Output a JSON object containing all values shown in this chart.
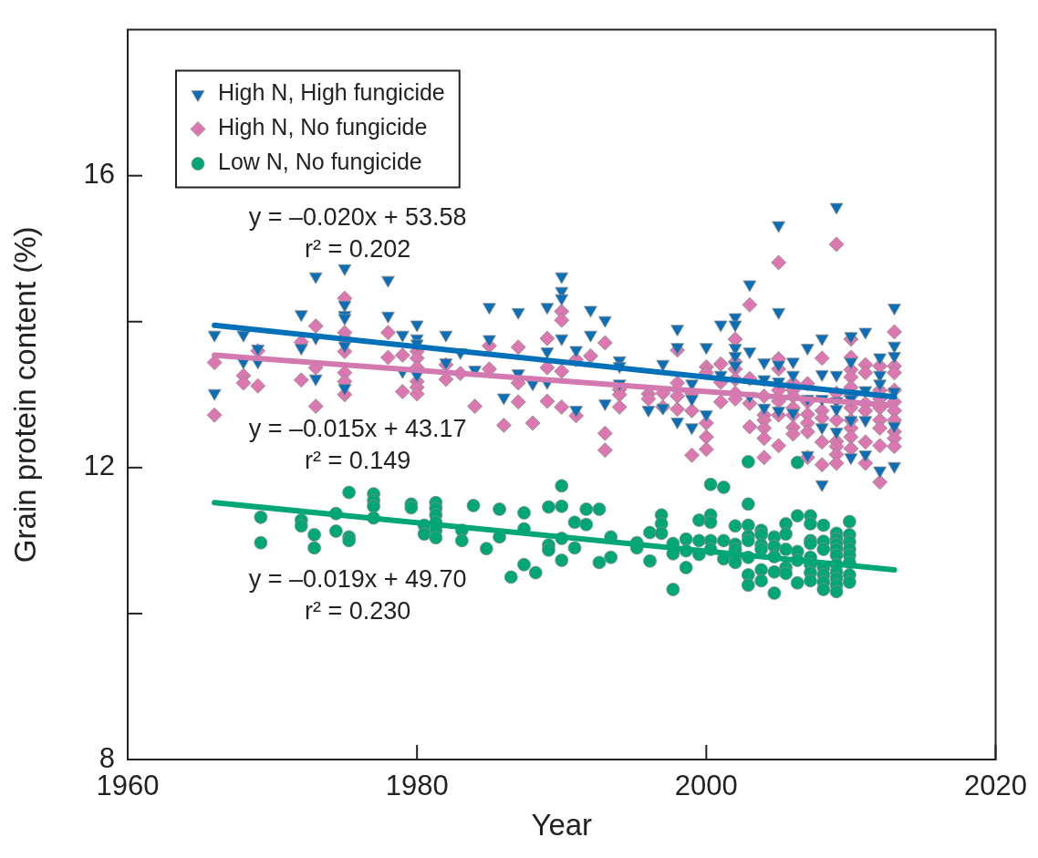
{
  "chart_data": {
    "type": "scatter",
    "xlabel": "Year",
    "ylabel": "Grain protein content (%)",
    "xlim": [
      1960,
      2020
    ],
    "xticks": [
      1960,
      1980,
      2000,
      2020
    ],
    "ylim": [
      8,
      18
    ],
    "yticks": [
      8,
      {
        "value": 10,
        "label": null
      },
      12,
      {
        "value": 14,
        "label": null
      },
      16
    ],
    "legend": "top left",
    "series": [
      {
        "name": "High N, High fungicide",
        "color": "#0b6fb8",
        "marker": "triangle",
        "x": [
          1966,
          1966,
          1968,
          1968,
          1969,
          1969,
          1972,
          1972,
          1973,
          1973,
          1973,
          1975,
          1975,
          1975,
          1975,
          1975,
          1975,
          1978,
          1978,
          1979,
          1979,
          1980,
          1980,
          1980,
          1980,
          1982,
          1982,
          1983,
          1984,
          1985,
          1985,
          1986,
          1987,
          1987,
          1988,
          1989,
          1989,
          1989,
          1990,
          1990,
          1990,
          1990,
          1991,
          1991,
          1992,
          1992,
          1993,
          1993,
          1994,
          1994,
          1994,
          1996,
          1997,
          1997,
          1998,
          1998,
          1998,
          1999,
          1999,
          1999,
          2000,
          2000,
          2001,
          2001,
          2002,
          2002,
          2002,
          2002,
          2002,
          2003,
          2003,
          2003,
          2004,
          2004,
          2004,
          2005,
          2005,
          2005,
          2005,
          2005,
          2006,
          2006,
          2006,
          2007,
          2007,
          2007,
          2008,
          2008,
          2008,
          2008,
          2008,
          2009,
          2009,
          2009,
          2009,
          2009,
          2010,
          2010,
          2010,
          2010,
          2010,
          2011,
          2011,
          2011,
          2011,
          2012,
          2012,
          2012,
          2012,
          2013,
          2013,
          2013,
          2013,
          2013,
          2013
        ],
        "values": [
          13.82,
          13.02,
          13.82,
          13.45,
          13.63,
          13.45,
          14.1,
          13.64,
          14.62,
          13.78,
          13.22,
          14.73,
          14.23,
          14.09,
          14.05,
          13.67,
          13.09,
          14.57,
          14.08,
          13.82,
          13.32,
          13.96,
          13.77,
          13.7,
          13.27,
          13.82,
          13.44,
          13.58,
          13.34,
          14.2,
          13.76,
          12.96,
          14.13,
          13.29,
          13.15,
          14.2,
          13.59,
          13.17,
          14.62,
          14.42,
          14.32,
          13.77,
          13.61,
          12.79,
          14.16,
          13.82,
          14.02,
          12.88,
          13.47,
          13.39,
          13.15,
          12.79,
          13.42,
          12.82,
          13.9,
          13.65,
          12.63,
          13.15,
          12.94,
          12.55,
          13.65,
          12.73,
          13.96,
          13.27,
          14.06,
          13.96,
          13.64,
          13.53,
          13.4,
          14.51,
          13.59,
          12.98,
          13.44,
          13.21,
          12.82,
          15.32,
          14.13,
          13.41,
          13.18,
          12.78,
          13.45,
          13.27,
          12.75,
          13.64,
          12.94,
          12.17,
          13.77,
          13.28,
          12.94,
          12.55,
          11.77,
          15.57,
          13.27,
          12.91,
          12.8,
          12.49,
          13.8,
          13.45,
          12.94,
          12.65,
          12.14,
          13.86,
          13.06,
          12.65,
          12.18,
          13.51,
          13.27,
          13.15,
          11.96,
          14.19,
          13.67,
          13.53,
          13.04,
          12.57,
          12.02
        ]
      },
      {
        "name": "High N, No fungicide",
        "color": "#dd77b2",
        "marker": "diamond",
        "x": [
          1966,
          1966,
          1968,
          1968,
          1969,
          1969,
          1972,
          1972,
          1973,
          1973,
          1973,
          1975,
          1975,
          1975,
          1975,
          1975,
          1975,
          1975,
          1978,
          1978,
          1979,
          1979,
          1980,
          1980,
          1980,
          1980,
          1980,
          1980,
          1982,
          1982,
          1983,
          1984,
          1985,
          1985,
          1986,
          1987,
          1987,
          1987,
          1988,
          1989,
          1989,
          1989,
          1990,
          1990,
          1990,
          1990,
          1991,
          1991,
          1992,
          1993,
          1993,
          1993,
          1994,
          1994,
          1994,
          1996,
          1996,
          1997,
          1997,
          1998,
          1998,
          1998,
          1998,
          1999,
          1999,
          1999,
          2000,
          2000,
          2000,
          2000,
          2000,
          2001,
          2001,
          2001,
          2002,
          2002,
          2002,
          2002,
          2002,
          2002,
          2003,
          2003,
          2003,
          2003,
          2004,
          2004,
          2004,
          2004,
          2004,
          2004,
          2005,
          2005,
          2005,
          2005,
          2005,
          2005,
          2005,
          2006,
          2006,
          2006,
          2006,
          2006,
          2006,
          2006,
          2007,
          2007,
          2007,
          2007,
          2007,
          2007,
          2008,
          2008,
          2008,
          2008,
          2008,
          2009,
          2009,
          2009,
          2009,
          2009,
          2009,
          2009,
          2010,
          2010,
          2010,
          2010,
          2010,
          2010,
          2010,
          2010,
          2010,
          2010,
          2010,
          2011,
          2011,
          2011,
          2011,
          2011,
          2011,
          2012,
          2012,
          2012,
          2012,
          2012,
          2012,
          2012,
          2012,
          2013,
          2013,
          2013,
          2013,
          2013,
          2013,
          2013,
          2013,
          2013,
          2013
        ],
        "values": [
          13.44,
          12.72,
          13.26,
          13.16,
          13.6,
          13.12,
          13.72,
          13.2,
          13.94,
          13.37,
          12.84,
          14.32,
          13.85,
          13.77,
          13.59,
          13.3,
          13.18,
          13.0,
          13.85,
          13.51,
          13.54,
          13.04,
          13.59,
          13.5,
          13.37,
          13.18,
          13.1,
          13.01,
          13.41,
          13.21,
          13.29,
          12.84,
          13.67,
          13.35,
          12.58,
          13.65,
          13.16,
          12.9,
          12.61,
          13.77,
          13.37,
          12.91,
          14.14,
          14.02,
          13.32,
          12.83,
          13.48,
          12.71,
          13.53,
          13.71,
          12.47,
          12.24,
          13.07,
          13.0,
          12.83,
          13.01,
          12.94,
          13.02,
          12.83,
          13.61,
          13.16,
          12.98,
          12.8,
          13.02,
          12.78,
          12.17,
          13.38,
          13.3,
          12.61,
          12.42,
          12.25,
          13.42,
          13.17,
          12.9,
          13.76,
          13.45,
          13.35,
          13.21,
          13.02,
          12.94,
          14.23,
          13.22,
          12.88,
          12.56,
          12.98,
          12.72,
          12.65,
          12.54,
          12.4,
          12.14,
          14.81,
          13.49,
          13.35,
          13.06,
          12.91,
          12.72,
          12.3,
          13.16,
          13.06,
          12.98,
          12.82,
          12.72,
          12.55,
          12.46,
          13.15,
          12.9,
          12.73,
          12.61,
          12.49,
          12.14,
          13.5,
          12.78,
          12.68,
          12.35,
          12.04,
          15.06,
          13.02,
          12.65,
          12.36,
          12.29,
          12.18,
          12.06,
          13.76,
          13.51,
          13.34,
          13.24,
          13.1,
          12.98,
          12.82,
          12.65,
          12.54,
          12.42,
          12.26,
          13.41,
          13.3,
          12.88,
          12.78,
          12.35,
          12.06,
          13.39,
          13.06,
          12.94,
          12.82,
          12.65,
          12.54,
          12.3,
          11.8,
          13.86,
          13.39,
          13.3,
          13.06,
          12.9,
          12.78,
          12.65,
          12.49,
          12.4,
          12.29
        ]
      },
      {
        "name": "Low N, No fungicide",
        "color": "#00a676",
        "marker": "circle",
        "x": [
          1969.2,
          1969.2,
          1972.0,
          1972.0,
          1972.9,
          1972.9,
          1974.4,
          1974.4,
          1975.3,
          1975.3,
          1975.3,
          1977.0,
          1977.0,
          1977.0,
          1977.0,
          1979.6,
          1979.6,
          1980.5,
          1980.5,
          1981.3,
          1981.3,
          1981.3,
          1981.3,
          1981.3,
          1981.3,
          1983.1,
          1983.1,
          1983.9,
          1984.8,
          1985.7,
          1985.7,
          1986.5,
          1987.4,
          1987.4,
          1987.4,
          1988.2,
          1989.1,
          1989.1,
          1989.1,
          1990.0,
          1990.0,
          1990.0,
          1990.0,
          1990.9,
          1990.9,
          1991.7,
          1991.7,
          1992.6,
          1992.6,
          1993.4,
          1993.4,
          1995.2,
          1995.2,
          1996.1,
          1996.1,
          1996.9,
          1996.9,
          1996.9,
          1997.7,
          1997.7,
          1997.7,
          1998.6,
          1998.6,
          1998.6,
          1999.5,
          1999.5,
          1999.5,
          2000.3,
          2000.3,
          2000.3,
          2000.3,
          2000.3,
          2001.2,
          2001.2,
          2001.2,
          2002.0,
          2002.0,
          2002.0,
          2002.0,
          2002.0,
          2002.9,
          2002.9,
          2002.9,
          2002.9,
          2002.9,
          2002.9,
          2002.9,
          2002.9,
          2003.8,
          2003.8,
          2003.8,
          2003.8,
          2003.8,
          2003.8,
          2004.7,
          2004.7,
          2004.7,
          2004.7,
          2004.7,
          2005.5,
          2005.5,
          2005.5,
          2005.5,
          2005.5,
          2006.3,
          2006.3,
          2006.3,
          2006.3,
          2006.3,
          2007.2,
          2007.2,
          2007.2,
          2007.2,
          2007.2,
          2007.2,
          2007.2,
          2007.2,
          2008.1,
          2008.1,
          2008.1,
          2008.1,
          2008.1,
          2008.1,
          2008.1,
          2009.0,
          2009.0,
          2009.0,
          2009.0,
          2009.0,
          2009.0,
          2009.0,
          2009.0,
          2009.0,
          2009.0,
          2009.9,
          2009.9,
          2009.9,
          2009.9,
          2009.9,
          2009.9,
          2009.9,
          2009.9
        ],
        "values": [
          11.32,
          10.97,
          11.28,
          11.2,
          11.08,
          10.9,
          11.37,
          11.13,
          11.66,
          11.05,
          11.0,
          11.64,
          11.55,
          11.47,
          11.31,
          11.5,
          11.45,
          11.21,
          11.09,
          11.52,
          11.44,
          11.35,
          11.25,
          11.14,
          11.04,
          11.14,
          11.0,
          11.48,
          10.89,
          11.43,
          11.05,
          10.5,
          11.38,
          11.16,
          10.67,
          10.56,
          11.46,
          10.94,
          10.87,
          11.75,
          11.47,
          11.03,
          10.73,
          11.25,
          10.9,
          11.43,
          11.22,
          11.43,
          10.7,
          11.05,
          10.77,
          10.97,
          10.9,
          11.11,
          10.72,
          11.35,
          11.23,
          11.1,
          10.96,
          10.82,
          10.33,
          11.02,
          10.86,
          10.63,
          11.28,
          11.0,
          10.81,
          11.77,
          11.35,
          11.25,
          11.0,
          10.88,
          11.73,
          11.0,
          10.75,
          11.2,
          10.95,
          10.88,
          10.77,
          10.7,
          12.08,
          11.5,
          11.21,
          11.06,
          11.0,
          10.77,
          10.53,
          10.39,
          11.14,
          11.08,
          10.94,
          10.88,
          10.6,
          10.45,
          11.05,
          10.92,
          10.78,
          10.57,
          10.28,
          11.23,
          11.09,
          10.88,
          10.63,
          10.55,
          12.07,
          11.34,
          10.85,
          10.73,
          10.42,
          11.34,
          11.23,
          11.0,
          10.96,
          10.77,
          10.67,
          10.56,
          10.45,
          11.21,
          10.99,
          10.88,
          10.63,
          10.53,
          10.43,
          10.33,
          11.1,
          11.02,
          10.95,
          10.88,
          10.8,
          10.67,
          10.57,
          10.48,
          10.39,
          10.3,
          11.26,
          11.08,
          10.98,
          10.88,
          10.8,
          10.7,
          10.53,
          10.43
        ]
      },
      {
        "type": "line",
        "color": "#0070b8",
        "x": [
          1966,
          2013
        ],
        "values": [
          13.95,
          12.97
        ]
      },
      {
        "type": "line",
        "color": "#d279b0",
        "x": [
          1966,
          2013
        ],
        "values": [
          13.54,
          12.85
        ]
      },
      {
        "type": "line",
        "color": "#00a676",
        "x": [
          1966,
          2013
        ],
        "values": [
          11.52,
          10.6
        ]
      }
    ],
    "annotations": [
      "y = –0.020x + 53.58",
      "r² = 0.202",
      "y = –0.015x + 43.17",
      "r² = 0.149",
      "y = –0.019x + 49.70",
      "r² = 0.230"
    ]
  }
}
